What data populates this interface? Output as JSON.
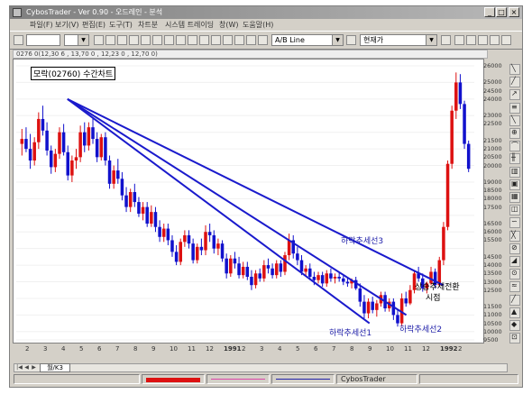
{
  "window": {
    "title": "CybosTrader - Ver 0.90 - 오드레인 - 분석"
  },
  "menu": [
    "파일(F)",
    "보기(V)",
    "편집(E)",
    "도구(T)",
    "차트분",
    "시스템 트레이딩",
    "창(W)",
    "도움말(H)"
  ],
  "toolbar": {
    "line_combo": "A/B Line",
    "price_combo": "현재가"
  },
  "info_text": "0276 0(12,30 6 , 13,70 0 , 12,23 0 , 12,70 0)",
  "chart_data": {
    "type": "candlestick",
    "title": "모락(02760) 수간차트",
    "x_ticks": [
      "2",
      "3",
      "4",
      "5",
      "6",
      "7",
      "8",
      "9",
      "10",
      "11",
      "12",
      "1991",
      "2",
      "3",
      "4",
      "5",
      "6",
      "7",
      "8",
      "9",
      "10",
      "11",
      "12",
      "1992",
      "2"
    ],
    "x_bold_ticks": [
      "1991",
      "1992"
    ],
    "y_ticks": [
      26000,
      25000,
      24000,
      23000,
      22000,
      21000,
      20000,
      19000,
      18000,
      17000,
      16000,
      15000,
      14000,
      13000,
      12000,
      11000,
      10000,
      9500
    ],
    "y_labels": [
      "26000",
      "25000",
      "24500",
      "24000",
      "23000",
      "22500",
      "21500",
      "21000",
      "20500",
      "20000",
      "19000",
      "18500",
      "18000",
      "17500",
      "16500",
      "16000",
      "15500",
      "14500",
      "14000",
      "13500",
      "13000",
      "12500",
      "11500",
      "11000",
      "10500",
      "10000",
      "9500"
    ],
    "ylim": [
      9500,
      26000
    ],
    "trendlines": [
      {
        "name": "하락추세선1",
        "start": [
          "1990-04",
          24000
        ],
        "end": [
          "1991-09",
          10500
        ]
      },
      {
        "name": "하락추세선2",
        "start": [
          "1990-04",
          24000
        ],
        "end": [
          "1991-11",
          11000
        ]
      },
      {
        "name": "하락추세선3",
        "start": [
          "1990-04",
          24000
        ],
        "end": [
          "1992-01",
          12800
        ]
      }
    ],
    "annotations": [
      "하락추세선3",
      "상승추세전환",
      "시점",
      "하락추세선1",
      "하락추세선2"
    ],
    "colors": {
      "up": "#dd1111",
      "down": "#1111cc",
      "trendline": "#1a1acc"
    },
    "candles": [
      [
        21300,
        22200,
        20600,
        21600
      ],
      [
        21600,
        22300,
        20800,
        21000
      ],
      [
        21000,
        21900,
        19800,
        20300
      ],
      [
        20300,
        21700,
        20000,
        21400
      ],
      [
        21400,
        23200,
        21000,
        22800
      ],
      [
        22800,
        23600,
        21800,
        22100
      ],
      [
        22100,
        22600,
        20600,
        20900
      ],
      [
        20900,
        21200,
        19500,
        19900
      ],
      [
        19900,
        21000,
        19600,
        20700
      ],
      [
        20700,
        22300,
        20400,
        22000
      ],
      [
        22000,
        22500,
        20600,
        20800
      ],
      [
        20800,
        21200,
        19100,
        19400
      ],
      [
        19400,
        20600,
        19000,
        20300
      ],
      [
        20300,
        21000,
        19800,
        20500
      ],
      [
        20500,
        22400,
        20200,
        22000
      ],
      [
        22000,
        22600,
        20800,
        21200
      ],
      [
        21200,
        22600,
        20900,
        22300
      ],
      [
        22300,
        22900,
        21300,
        21600
      ],
      [
        21600,
        22000,
        20200,
        20500
      ],
      [
        20500,
        21900,
        20300,
        21700
      ],
      [
        21700,
        22000,
        20000,
        20300
      ],
      [
        20300,
        20600,
        18600,
        18900
      ],
      [
        18900,
        20000,
        18600,
        19700
      ],
      [
        19700,
        20400,
        18900,
        19200
      ],
      [
        19200,
        19600,
        17900,
        18200
      ],
      [
        18200,
        18700,
        17200,
        17500
      ],
      [
        17500,
        18600,
        17200,
        18400
      ],
      [
        18400,
        18900,
        17500,
        17800
      ],
      [
        17800,
        18100,
        16900,
        17100
      ],
      [
        17100,
        17800,
        16700,
        17500
      ],
      [
        17500,
        17800,
        16300,
        16500
      ],
      [
        16500,
        17600,
        16300,
        17200
      ],
      [
        17200,
        17500,
        16000,
        16300
      ],
      [
        16300,
        16700,
        15400,
        15700
      ],
      [
        15700,
        16500,
        15400,
        16200
      ],
      [
        16200,
        16500,
        15200,
        15500
      ],
      [
        15500,
        15800,
        14500,
        14800
      ],
      [
        14800,
        15200,
        14000,
        14200
      ],
      [
        14200,
        15600,
        14000,
        15400
      ],
      [
        15400,
        16100,
        15100,
        15800
      ],
      [
        15800,
        16100,
        15000,
        15300
      ],
      [
        15300,
        15600,
        14100,
        14300
      ],
      [
        14300,
        15300,
        14100,
        15100
      ],
      [
        15100,
        15600,
        14600,
        14900
      ],
      [
        14900,
        16400,
        14600,
        16000
      ],
      [
        16000,
        16500,
        15400,
        15800
      ],
      [
        15800,
        16100,
        14700,
        15000
      ],
      [
        15000,
        15600,
        14600,
        15300
      ],
      [
        15300,
        15500,
        14200,
        14400
      ],
      [
        14400,
        14700,
        13200,
        13500
      ],
      [
        13500,
        14600,
        13300,
        14400
      ],
      [
        14400,
        14800,
        13800,
        14100
      ],
      [
        14100,
        14500,
        13200,
        13400
      ],
      [
        13400,
        14200,
        13200,
        13900
      ],
      [
        13900,
        14200,
        13100,
        13300
      ],
      [
        13300,
        13700,
        12500,
        12800
      ],
      [
        12800,
        13700,
        12600,
        13500
      ],
      [
        13500,
        13800,
        13000,
        13200
      ],
      [
        13200,
        14300,
        13000,
        14000
      ],
      [
        14000,
        14400,
        13500,
        13800
      ],
      [
        13800,
        14100,
        13200,
        13400
      ],
      [
        13400,
        14300,
        13200,
        14100
      ],
      [
        14100,
        14300,
        13300,
        13600
      ],
      [
        13600,
        14800,
        13400,
        14600
      ],
      [
        14600,
        15900,
        14300,
        15500
      ],
      [
        15500,
        15800,
        14400,
        14700
      ],
      [
        14700,
        15100,
        14000,
        14300
      ],
      [
        14300,
        14600,
        13400,
        13600
      ],
      [
        13600,
        14000,
        13300,
        13800
      ],
      [
        13800,
        14100,
        13100,
        13300
      ],
      [
        13300,
        13600,
        12800,
        13100
      ],
      [
        13100,
        13600,
        12900,
        13400
      ],
      [
        13400,
        13600,
        12700,
        12900
      ],
      [
        12900,
        13700,
        12700,
        13500
      ],
      [
        13500,
        13800,
        13000,
        13200
      ],
      [
        13200,
        13500,
        12900,
        13300
      ],
      [
        13300,
        13600,
        13000,
        13200
      ],
      [
        13200,
        13400,
        12800,
        13000
      ],
      [
        13000,
        13300,
        12700,
        12900
      ],
      [
        12900,
        13200,
        12600,
        13100
      ],
      [
        13100,
        13300,
        12500,
        12600
      ],
      [
        12600,
        12900,
        11500,
        11800
      ],
      [
        11800,
        12200,
        10800,
        11100
      ],
      [
        11100,
        12000,
        10800,
        11800
      ],
      [
        11800,
        12100,
        11100,
        11300
      ],
      [
        11300,
        11900,
        10900,
        11700
      ],
      [
        11700,
        12400,
        11500,
        12200
      ],
      [
        12200,
        12400,
        11200,
        11400
      ],
      [
        11400,
        12000,
        11200,
        11800
      ],
      [
        11800,
        12000,
        10700,
        11000
      ],
      [
        11000,
        11300,
        10300,
        10500
      ],
      [
        10500,
        12300,
        10300,
        12000
      ],
      [
        12000,
        12400,
        11500,
        11700
      ],
      [
        11700,
        12800,
        11600,
        12500
      ],
      [
        12500,
        13700,
        12300,
        13500
      ],
      [
        13500,
        13900,
        13000,
        13200
      ],
      [
        13200,
        13500,
        12400,
        12600
      ],
      [
        12600,
        13000,
        12300,
        12900
      ],
      [
        12900,
        13900,
        12800,
        13600
      ],
      [
        13600,
        13800,
        12600,
        12800
      ],
      [
        12800,
        14500,
        12700,
        14300
      ],
      [
        14300,
        16600,
        14000,
        16300
      ],
      [
        16300,
        20300,
        16100,
        20100
      ],
      [
        20100,
        23600,
        19800,
        23300
      ],
      [
        23300,
        25600,
        22800,
        25000
      ],
      [
        25000,
        25500,
        23400,
        23700
      ],
      [
        23700,
        23900,
        21000,
        21300
      ],
      [
        21300,
        21500,
        19600,
        19800
      ]
    ]
  },
  "tabs": {
    "active": "월/K3"
  },
  "status": {
    "app_name": "CybosTrader"
  },
  "right_tools": [
    "╲",
    "╱",
    "↗",
    "≡",
    "╲",
    "⊕",
    "⌒",
    "╫",
    "▥",
    "▣",
    "▦",
    "◫",
    "∽",
    "╳",
    "⊘",
    "◢",
    "⊙",
    "≈",
    "╱",
    "▲",
    "◆",
    "⊡"
  ]
}
